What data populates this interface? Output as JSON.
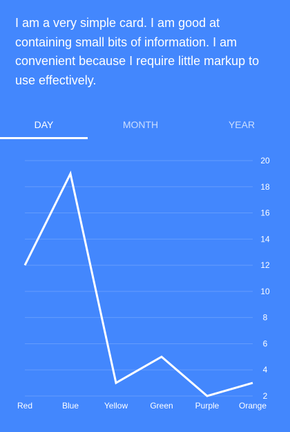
{
  "card": {
    "text": "I am a very simple card. I am good at containing small bits of information. I am convenient because I require little markup to use effectively."
  },
  "tabs": [
    {
      "label": "DAY",
      "active": true
    },
    {
      "label": "MONTH",
      "active": false
    },
    {
      "label": "YEAR",
      "active": false
    }
  ],
  "colors": {
    "background": "#4387fd",
    "line": "#ffffff",
    "grid": "rgba(255,255,255,0.18)"
  },
  "chart_data": {
    "type": "line",
    "categories": [
      "Red",
      "Blue",
      "Yellow",
      "Green",
      "Purple",
      "Orange"
    ],
    "series": [
      {
        "values": [
          12,
          19,
          3,
          5,
          2,
          3
        ]
      }
    ],
    "ylim": [
      2,
      20
    ],
    "yticks": [
      2,
      4,
      6,
      8,
      10,
      12,
      14,
      16,
      18,
      20
    ],
    "grid": true,
    "legend": "none"
  }
}
